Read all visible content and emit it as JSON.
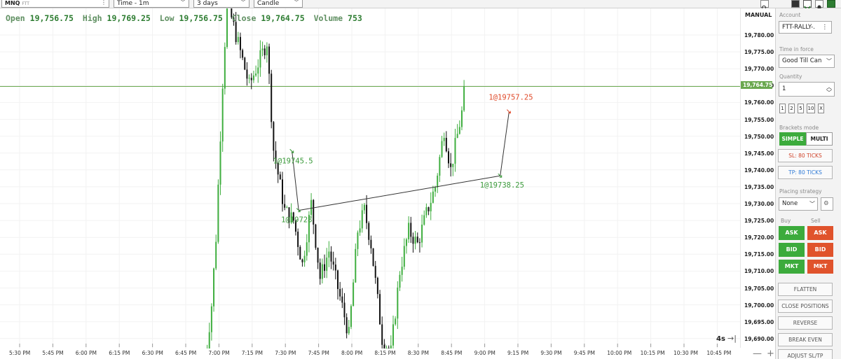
{
  "toolbar": {
    "symbol": "MNQ",
    "symbol_sub": "FTT",
    "timeframe": "Time - 1m",
    "range": "3 days",
    "chart_style": "Candle"
  },
  "ohlc": {
    "open_label": "Open",
    "open": "19,756.75",
    "high_label": "High",
    "high": "19,769.25",
    "low_label": "Low",
    "low": "19,756.75",
    "close_label": "Close",
    "close": "19,764.75",
    "volume_label": "Volume",
    "volume": "753"
  },
  "axis": {
    "mode": "MANUAL",
    "price_ticks": [
      "19,780.00",
      "19,775.00",
      "19,770.00",
      "19,765.00",
      "19,760.00",
      "19,755.00",
      "19,750.00",
      "19,745.00",
      "19,740.00",
      "19,735.00",
      "19,730.00",
      "19,725.00",
      "19,720.00",
      "19,715.00",
      "19,710.00",
      "19,705.00",
      "19,700.00",
      "19,695.00",
      "19,690.00"
    ],
    "current_price": "19,764.75",
    "time_ticks": [
      "5:30 PM",
      "5:45 PM",
      "6:00 PM",
      "6:15 PM",
      "6:30 PM",
      "6:45 PM",
      "7:00 PM",
      "7:15 PM",
      "7:30 PM",
      "7:45 PM",
      "8:00 PM",
      "8:15 PM",
      "8:30 PM",
      "8:45 PM",
      "9:00 PM",
      "9:15 PM",
      "9:30 PM",
      "9:45 PM",
      "10:00 PM",
      "10:15 PM",
      "10:30 PM",
      "10:45 PM"
    ],
    "bar_timer": "4s",
    "zoom_out": "—",
    "zoom_in": "+"
  },
  "chart_data": {
    "type": "candlestick",
    "instrument": "MNQ",
    "interval": "1m",
    "y_range": [
      19688,
      19785
    ],
    "current_price_line": 19764.75,
    "colors": {
      "up": "#3fae3f",
      "down": "#111111",
      "current_line": "#6aa84f",
      "fill_up": "#3a9a3a",
      "fill_down": "#e04a2a"
    },
    "fills": [
      {
        "label": "1@19745.5",
        "price": 19745.5,
        "time": "7:33 PM"
      },
      {
        "label": "1@19728",
        "price": 19728,
        "time": "7:36 PM"
      },
      {
        "label": "1@19738.25",
        "price": 19738.25,
        "time": "9:07 PM"
      },
      {
        "label": "1@19757.25",
        "price": 19757.25,
        "time": "9:11 PM"
      }
    ],
    "trade_lines": [
      {
        "from": {
          "time": "7:33 PM",
          "price": 19745.5
        },
        "to": {
          "time": "7:36 PM",
          "price": 19728
        }
      },
      {
        "from": {
          "time": "7:36 PM",
          "price": 19728
        },
        "to": {
          "time": "9:07 PM",
          "price": 19738.25
        }
      },
      {
        "from": {
          "time": "9:07 PM",
          "price": 19738.25
        },
        "to": {
          "time": "9:11 PM",
          "price": 19757.25
        }
      }
    ],
    "waypoints": [
      [
        0,
        19682
      ],
      [
        3,
        19700
      ],
      [
        5,
        19720
      ],
      [
        8,
        19766
      ],
      [
        10,
        19790
      ],
      [
        20,
        19765
      ],
      [
        28,
        19778
      ],
      [
        31,
        19746
      ],
      [
        36,
        19728
      ],
      [
        40,
        19725
      ],
      [
        44,
        19712
      ],
      [
        48,
        19730
      ],
      [
        52,
        19708
      ],
      [
        56,
        19716
      ],
      [
        60,
        19705
      ],
      [
        65,
        19691
      ],
      [
        69,
        19722
      ],
      [
        72,
        19728
      ],
      [
        75,
        19718
      ],
      [
        80,
        19690
      ],
      [
        84,
        19686
      ],
      [
        88,
        19710
      ],
      [
        92,
        19722
      ],
      [
        96,
        19718
      ],
      [
        100,
        19727
      ],
      [
        104,
        19735
      ],
      [
        108,
        19752
      ],
      [
        111,
        19740
      ],
      [
        113,
        19747
      ],
      [
        116,
        19757
      ],
      [
        117,
        19764.75
      ]
    ]
  },
  "panel": {
    "account_label": "Account",
    "account_value": "FTT-RALLY-.",
    "tif_label": "Time in force",
    "tif_value": "Good Till Can",
    "qty_label": "Quantity",
    "qty_value": "1",
    "qty_presets": [
      "1",
      "2",
      "5",
      "10",
      "X"
    ],
    "brackets_label": "Brackets mode",
    "bracket_simple": "SIMPLE",
    "bracket_multi": "MULTI",
    "sl": "SL: 80 TICKS",
    "tp": "TP: 80 TICKS",
    "strategy_label": "Placing strategy",
    "strategy_value": "None",
    "buy_label": "Buy",
    "sell_label": "Sell",
    "ask": "ASK",
    "bid": "BID",
    "mkt": "MKT",
    "flatten": "FLATTEN",
    "close_positions": "CLOSE POSITIONS",
    "reverse": "REVERSE",
    "break_even": "BREAK EVEN",
    "adjust": "ADJUST SL/TP"
  }
}
